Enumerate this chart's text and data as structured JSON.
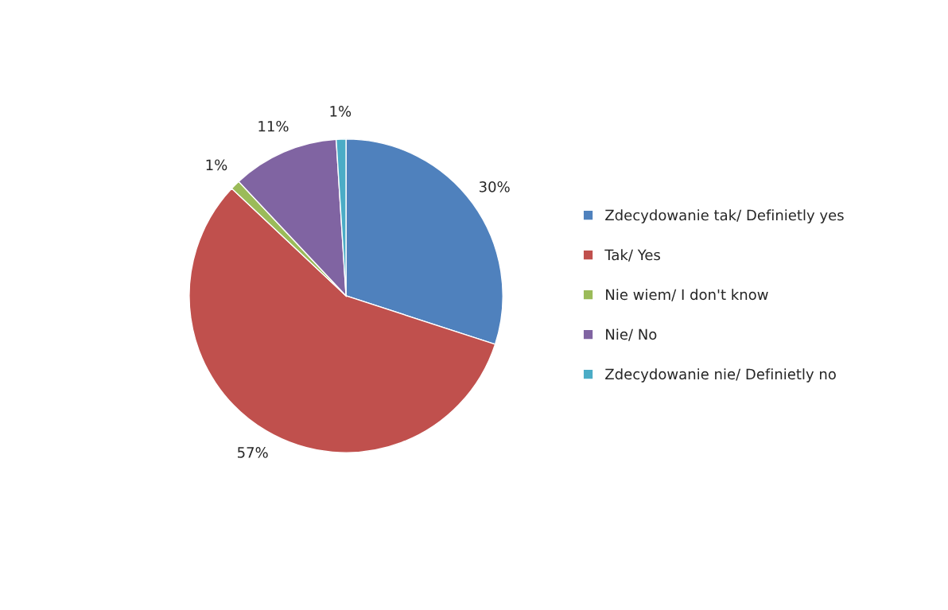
{
  "chart_data": {
    "type": "pie",
    "categories": [
      "Zdecydowanie tak/ Definietly yes",
      "Tak/ Yes",
      "Nie wiem/ I don't know",
      "Nie/ No",
      "Zdecydowanie nie/ Definietly no"
    ],
    "values": [
      30,
      57,
      1,
      11,
      1
    ],
    "colors": [
      "#4f81bd",
      "#c0504d",
      "#9bbb59",
      "#8064a2",
      "#4bacc6"
    ],
    "value_labels": [
      "30%",
      "57%",
      "1%",
      "11%",
      "1%"
    ],
    "legend": "right"
  }
}
